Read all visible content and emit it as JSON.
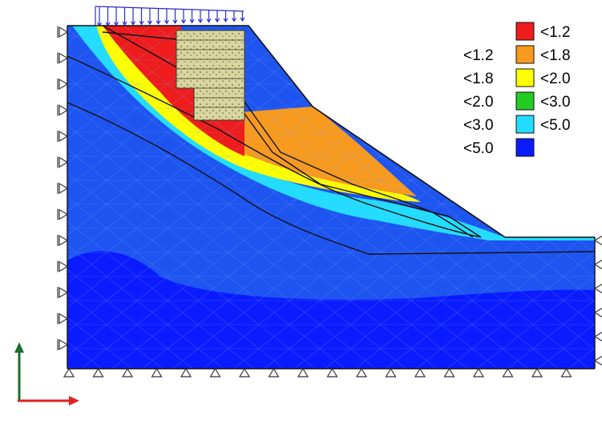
{
  "legend": {
    "colors": {
      "lt_1_2": "#ee1c1c",
      "range_1_2_1_8": "#f79a1e",
      "range_1_8_2_0": "#ffff00",
      "range_2_0_3_0": "#22cc22",
      "range_3_0_5_0": "#22ddff",
      "ge_5_0": "#0a1cff"
    },
    "rows": [
      {
        "left": "",
        "right": "<1.2"
      },
      {
        "left": "<1.2",
        "right": "<1.8"
      },
      {
        "left": "<1.8",
        "right": "<2.0"
      },
      {
        "left": "<2.0",
        "right": "<3.0"
      },
      {
        "left": "<3.0",
        "right": "<5.0"
      },
      {
        "left": "<5.0",
        "right": ""
      }
    ]
  },
  "axes": {
    "vertical_axis_color": "#1a6e2e",
    "horizontal_axis_color": "#e32222"
  },
  "load": {
    "color": "#2a2ad0"
  },
  "structure": {
    "color": "#d8d6a0"
  }
}
